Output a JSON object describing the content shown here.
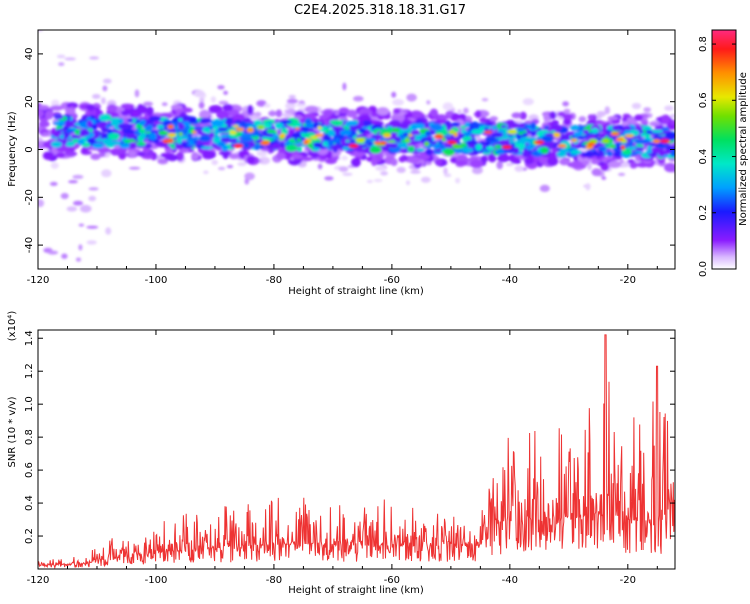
{
  "title": "C2E4.2025.318.18.31.G17",
  "chart_data": [
    {
      "type": "heatmap",
      "name": "spectrogram",
      "xlabel": "Height of straight line (km)",
      "ylabel": "Frequency (Hz)",
      "xlim": [
        -120,
        -12
      ],
      "ylim": [
        -50,
        50
      ],
      "x_ticks": [
        -120,
        -100,
        -80,
        -60,
        -40,
        -20
      ],
      "x_tick_labels": [
        "-120",
        "-100",
        "-80",
        "-60",
        "-40",
        "-20"
      ],
      "y_ticks": [
        -40,
        -20,
        0,
        20,
        40
      ],
      "y_tick_labels": [
        "-40",
        "-20",
        "0",
        "20",
        "40"
      ],
      "colorbar": {
        "label": "Normalized spectral amplitude",
        "range": [
          0.0,
          0.85
        ],
        "ticks": [
          0.0,
          0.2,
          0.4,
          0.6,
          0.8
        ],
        "tick_labels": [
          "0.0",
          "0.2",
          "0.4",
          "0.6",
          "0.8"
        ]
      },
      "band": {
        "center_start_hz": 8,
        "center_end_hz": 3,
        "half_width_hz": 6,
        "peak_amplitude": 0.8
      }
    },
    {
      "type": "line",
      "name": "snr",
      "xlabel": "Height of straight line (km)",
      "ylabel": "SNR (10 * v/v)",
      "y_scale_label": "(x10⁴)",
      "xlim": [
        -120,
        -12
      ],
      "ylim": [
        0,
        1.45
      ],
      "x_ticks": [
        -120,
        -100,
        -80,
        -60,
        -40,
        -20
      ],
      "x_tick_labels": [
        "-120",
        "-100",
        "-80",
        "-60",
        "-40",
        "-20"
      ],
      "y_ticks": [
        0.2,
        0.4,
        0.6,
        0.8,
        1.0,
        1.2,
        1.4
      ],
      "y_tick_labels": [
        "0.2",
        "0.4",
        "0.6",
        "0.8",
        "1.0",
        "1.2",
        "1.4"
      ],
      "series": [
        {
          "name": "SNR",
          "color": "#ee3333",
          "envelope": {
            "x": [
              -120,
              -112,
              -110,
              -100,
              -80,
              -60,
              -45,
              -43,
              -35,
              -28,
              -24,
              -20,
              -15,
              -12
            ],
            "baseline": [
              0.02,
              0.03,
              0.05,
              0.1,
              0.15,
              0.14,
              0.14,
              0.28,
              0.3,
              0.32,
              0.34,
              0.3,
              0.26,
              0.42
            ],
            "peak": [
              0.05,
              0.08,
              0.15,
              0.3,
              0.45,
              0.42,
              0.35,
              0.8,
              0.85,
              0.95,
              1.42,
              0.95,
              1.23,
              0.75
            ]
          }
        }
      ]
    }
  ]
}
